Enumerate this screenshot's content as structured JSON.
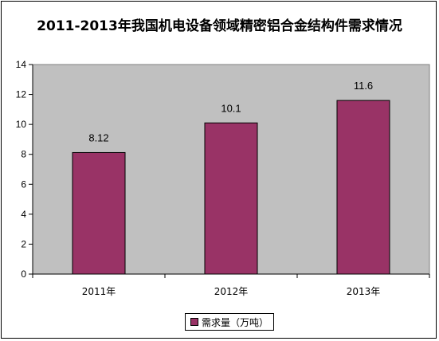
{
  "chart_data": {
    "type": "bar",
    "title": "2011-2013年我国机电设备领域精密铝合金结构件需求情况",
    "categories": [
      "2011年",
      "2012年",
      "2013年"
    ],
    "series": [
      {
        "name": "需求量（万吨）",
        "values": [
          8.12,
          10.1,
          11.6
        ],
        "color": "#993366"
      }
    ],
    "data_labels": [
      "8.12",
      "10.1",
      "11.6"
    ],
    "yticks": [
      "0",
      "2",
      "4",
      "6",
      "8",
      "10",
      "12",
      "14"
    ],
    "ylim": [
      0,
      14
    ],
    "legend_position": "bottom",
    "plot_background": "#c0c0c0",
    "grid": false
  }
}
